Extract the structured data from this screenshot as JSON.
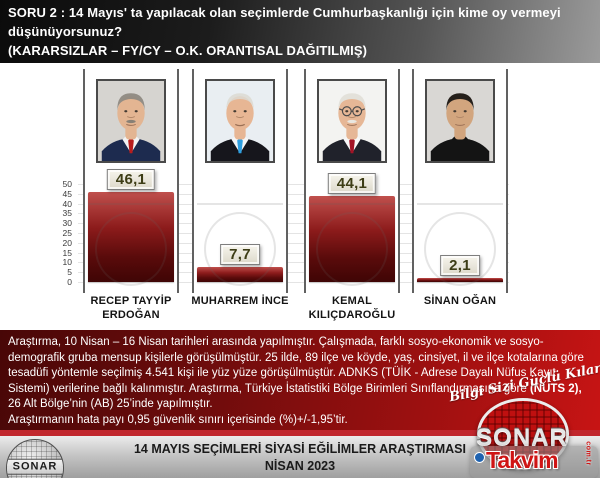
{
  "header": {
    "question": "SORU 2 :  14 Mayıs' ta yapılacak olan seçimlerde Cumhurbaşkanlığı için kime oy vermeyi düşünüyorsunuz?",
    "subtitle": "(KARARSIZLAR – FY/CY – O.K. ORANTISAL DAĞITILMIŞ)"
  },
  "chart_data": {
    "type": "bar",
    "title": "",
    "categories": [
      "RECEP TAYYİP ERDOĞAN",
      "MUHARREM İNCE",
      "KEMAL KILIÇDAROĞLU",
      "SİNAN OĞAN"
    ],
    "values": [
      46.1,
      7.7,
      44.1,
      2.1
    ],
    "value_labels": [
      "46,1",
      "7,7",
      "44,1",
      "2,1"
    ],
    "xlabel": "",
    "ylabel": "",
    "ylim": [
      0,
      50
    ],
    "yticks": [
      0,
      5,
      10,
      15,
      20,
      25,
      30,
      35,
      40,
      45,
      50
    ],
    "grid": true,
    "legend": false,
    "bar_color_top": "#c0504d",
    "bar_color_bottom": "#3f0505"
  },
  "candidates": [
    {
      "name": "RECEP TAYYİP ERDOĞAN",
      "value_label": "46,1",
      "avatar": {
        "bg": "#d6d4d0",
        "suit": "#1d2b4f",
        "shirt": "#f2f2f2",
        "tie": "#b81c1c",
        "skin": "#e3b592",
        "hair": "#8f8a82",
        "mus": "#7d7a72",
        "hair_op": 0.95,
        "mus_op": 0.9,
        "gl_op": 0,
        "tie_op": 1
      }
    },
    {
      "name": "MUHARREM İNCE",
      "value_label": "7,7",
      "avatar": {
        "bg": "#e9eef2",
        "suit": "#16161c",
        "shirt": "#f5f5f5",
        "tie": "#2e9fe0",
        "skin": "#e7b694",
        "hair": "#dcd9d2",
        "mus": "#dcd9d2",
        "hair_op": 0.85,
        "mus_op": 0,
        "gl_op": 0,
        "tie_op": 1
      }
    },
    {
      "name": "KEMAL KILIÇDAROĞLU",
      "value_label": "44,1",
      "avatar": {
        "bg": "#f3f3f1",
        "suit": "#20222b",
        "shirt": "#f7f7f7",
        "tie": "#a31325",
        "skin": "#e6b796",
        "hair": "#e3e1da",
        "mus": "#e9e7e0",
        "hair_op": 1,
        "mus_op": 1,
        "gl_op": 1,
        "tie_op": 1
      }
    },
    {
      "name": "SİNAN OĞAN",
      "value_label": "2,1",
      "avatar": {
        "bg": "#d9d7d4",
        "suit": "#141414",
        "shirt": "#141414",
        "tie": "#141414",
        "skin": "#d2a57e",
        "hair": "#26201b",
        "mus": "#26201b",
        "hair_op": 1,
        "mus_op": 0,
        "gl_op": 0,
        "tie_op": 0
      }
    }
  ],
  "footer": {
    "body_1": "Araştırma, 10 Nisan – 16 Nisan tarihleri arasında yapılmıştır. Çalışmada, farklı sosyo-ekonomik ve sosyo-demografik gruba mensup kişilerle görüşülmüştür. 25 ilde, 89 ilçe ve köyde, yaş, cinsiyet, il ve ilçe kotalarına göre tesadüfi yöntemle seçilmiş 4.541 kişi ile yüz yüze görüşülmüştür. ADNKS (TÜİK - Adrese Dayalı Nüfus Kayıt Sistemi)  verilerine bağlı kalınmıştır. Araştırma, Türkiye İstatistiki Bölge Birimleri Sınıflandırmasına göre ",
    "body_bold": "(NUTS 2),",
    "body_2": " 26 Alt Bölge’nin (AB) 25’inde yapılmıştır.",
    "error_note": "Araştırmanın hata payı 0,95 güvenlik sınırı içerisinde (%)+/-1,95’tir."
  },
  "bottom_bar": {
    "line1": "14 MAYIS SEÇİMLERİ SİYASİ EĞİLİMLER ARAŞTIRMASI",
    "line2": "NİSAN 2023"
  },
  "logos": {
    "globe_text": "SONAR",
    "slogan_script": "Bilgi Sizi Güçlü Kılar",
    "sonar_wordmark": "SONAR",
    "takvim_wordmark": "Takvim",
    "takvim_domain": "com.tr"
  },
  "colors": {
    "header_dark": "#0b0b0b",
    "footer_red": "#9c1010",
    "accent_red_line": "#c1272d",
    "bar_top": "#c0504d",
    "bar_bottom": "#3f0505",
    "value_box_bg": "#f0ede1",
    "value_box_text": "#3d3d16"
  }
}
